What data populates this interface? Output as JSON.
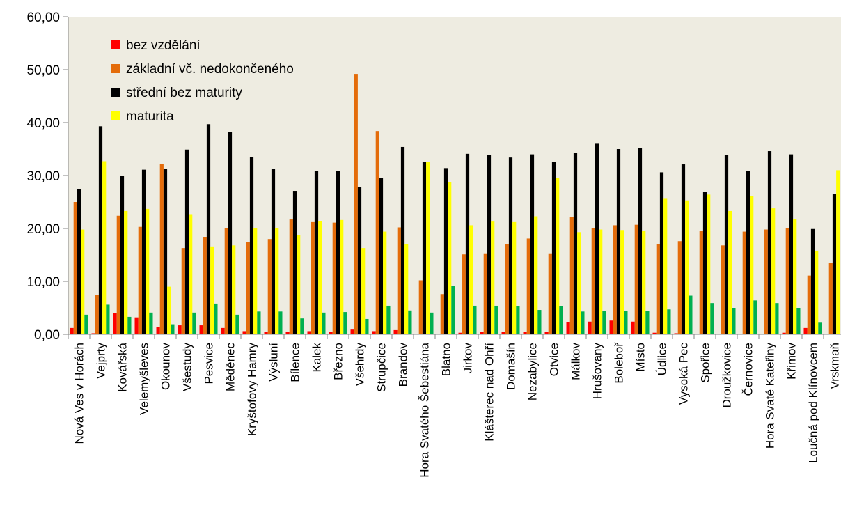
{
  "chart_data": {
    "type": "bar",
    "title": "",
    "xlabel": "",
    "ylabel": "",
    "ylim": [
      0,
      60
    ],
    "ytick_step": 10,
    "ytick_labels": [
      "0,00",
      "10,00",
      "20,00",
      "30,00",
      "40,00",
      "50,00",
      "60,00"
    ],
    "grid": false,
    "legend_position": "top-left",
    "plot_background": "#EEECE1",
    "categories": [
      "Nová Ves v Horách",
      "Vejprty",
      "Kovářská",
      "Velemyšleves",
      "Okounov",
      "Všestudy",
      "Pesvice",
      "Měděnec",
      "Kryštofovy Hamry",
      "Výsluní",
      "Bílence",
      "Kalek",
      "Březno",
      "Všehrdy",
      "Strupčice",
      "Brandov",
      "Hora Svatého Šebestiána",
      "Blatno",
      "Jirkov",
      "Klášterec nad Ohří",
      "Domašín",
      "Nezabylice",
      "Otvice",
      "Málkov",
      "Hrušovany",
      "Boleboř",
      "Místo",
      "Údlice",
      "Vysoká Pec",
      "Spořice",
      "Droužkovice",
      "Černovice",
      "Hora Svaté Kateřiny",
      "Křimov",
      "Loučná pod Klínovcem",
      "Vrskmaň"
    ],
    "series": [
      {
        "name": "bez vzdělání",
        "color": "#FF0000",
        "values": [
          1.2,
          0.2,
          4.0,
          3.2,
          1.4,
          1.7,
          1.7,
          1.2,
          0.6,
          0.4,
          0.4,
          0.6,
          0.5,
          0.9,
          0.6,
          0.8,
          0.0,
          0.0,
          0.3,
          0.4,
          0.4,
          0.5,
          0.5,
          2.3,
          2.4,
          2.6,
          2.4,
          0.3,
          0.2,
          0.0,
          0.1,
          0.1,
          0.1,
          0.3,
          1.2,
          0.0
        ]
      },
      {
        "name": "základní vč. nedokončeného",
        "color": "#E46C0A",
        "values": [
          25.0,
          7.4,
          22.4,
          20.3,
          32.2,
          16.3,
          18.3,
          20.0,
          17.5,
          18.0,
          21.7,
          21.2,
          21.1,
          49.2,
          38.4,
          20.2,
          10.2,
          7.6,
          15.1,
          15.3,
          17.1,
          18.1,
          15.3,
          22.2,
          20.0,
          20.6,
          20.7,
          17.0,
          17.6,
          19.6,
          16.8,
          19.4,
          19.8,
          20.0,
          11.1,
          13.5
        ]
      },
      {
        "name": "střední bez maturity",
        "color": "#000000",
        "values": [
          27.5,
          39.3,
          29.9,
          31.1,
          31.3,
          34.9,
          39.7,
          38.2,
          33.5,
          31.2,
          27.1,
          30.8,
          30.8,
          27.8,
          29.5,
          35.4,
          32.6,
          31.4,
          34.1,
          33.9,
          33.4,
          34.0,
          32.6,
          34.3,
          36.0,
          35.0,
          35.2,
          30.6,
          32.1,
          26.9,
          33.9,
          30.8,
          34.6,
          34.0,
          19.9,
          26.5
        ]
      },
      {
        "name": "maturita",
        "color": "#FFFF00",
        "values": [
          19.8,
          32.7,
          23.3,
          23.7,
          9.0,
          22.7,
          16.6,
          16.8,
          20.0,
          20.0,
          18.8,
          21.4,
          21.6,
          16.3,
          19.4,
          17.0,
          32.6,
          28.8,
          20.6,
          21.3,
          21.2,
          22.3,
          29.5,
          19.3,
          19.8,
          19.7,
          19.5,
          25.6,
          25.3,
          26.4,
          23.3,
          26.1,
          23.8,
          21.8,
          15.8,
          31.0
        ]
      },
      {
        "name": "",
        "color": "#00B050",
        "values": [
          3.7,
          5.6,
          3.3,
          4.1,
          1.9,
          4.1,
          5.8,
          3.7,
          4.3,
          4.3,
          3.0,
          4.1,
          4.2,
          2.9,
          5.4,
          4.5,
          4.1,
          9.2,
          5.4,
          5.4,
          5.3,
          4.6,
          5.3,
          4.3,
          4.4,
          4.4,
          4.4,
          4.7,
          7.3,
          5.9,
          5.0,
          6.4,
          5.9,
          5.0,
          2.2,
          0.0
        ]
      }
    ]
  }
}
